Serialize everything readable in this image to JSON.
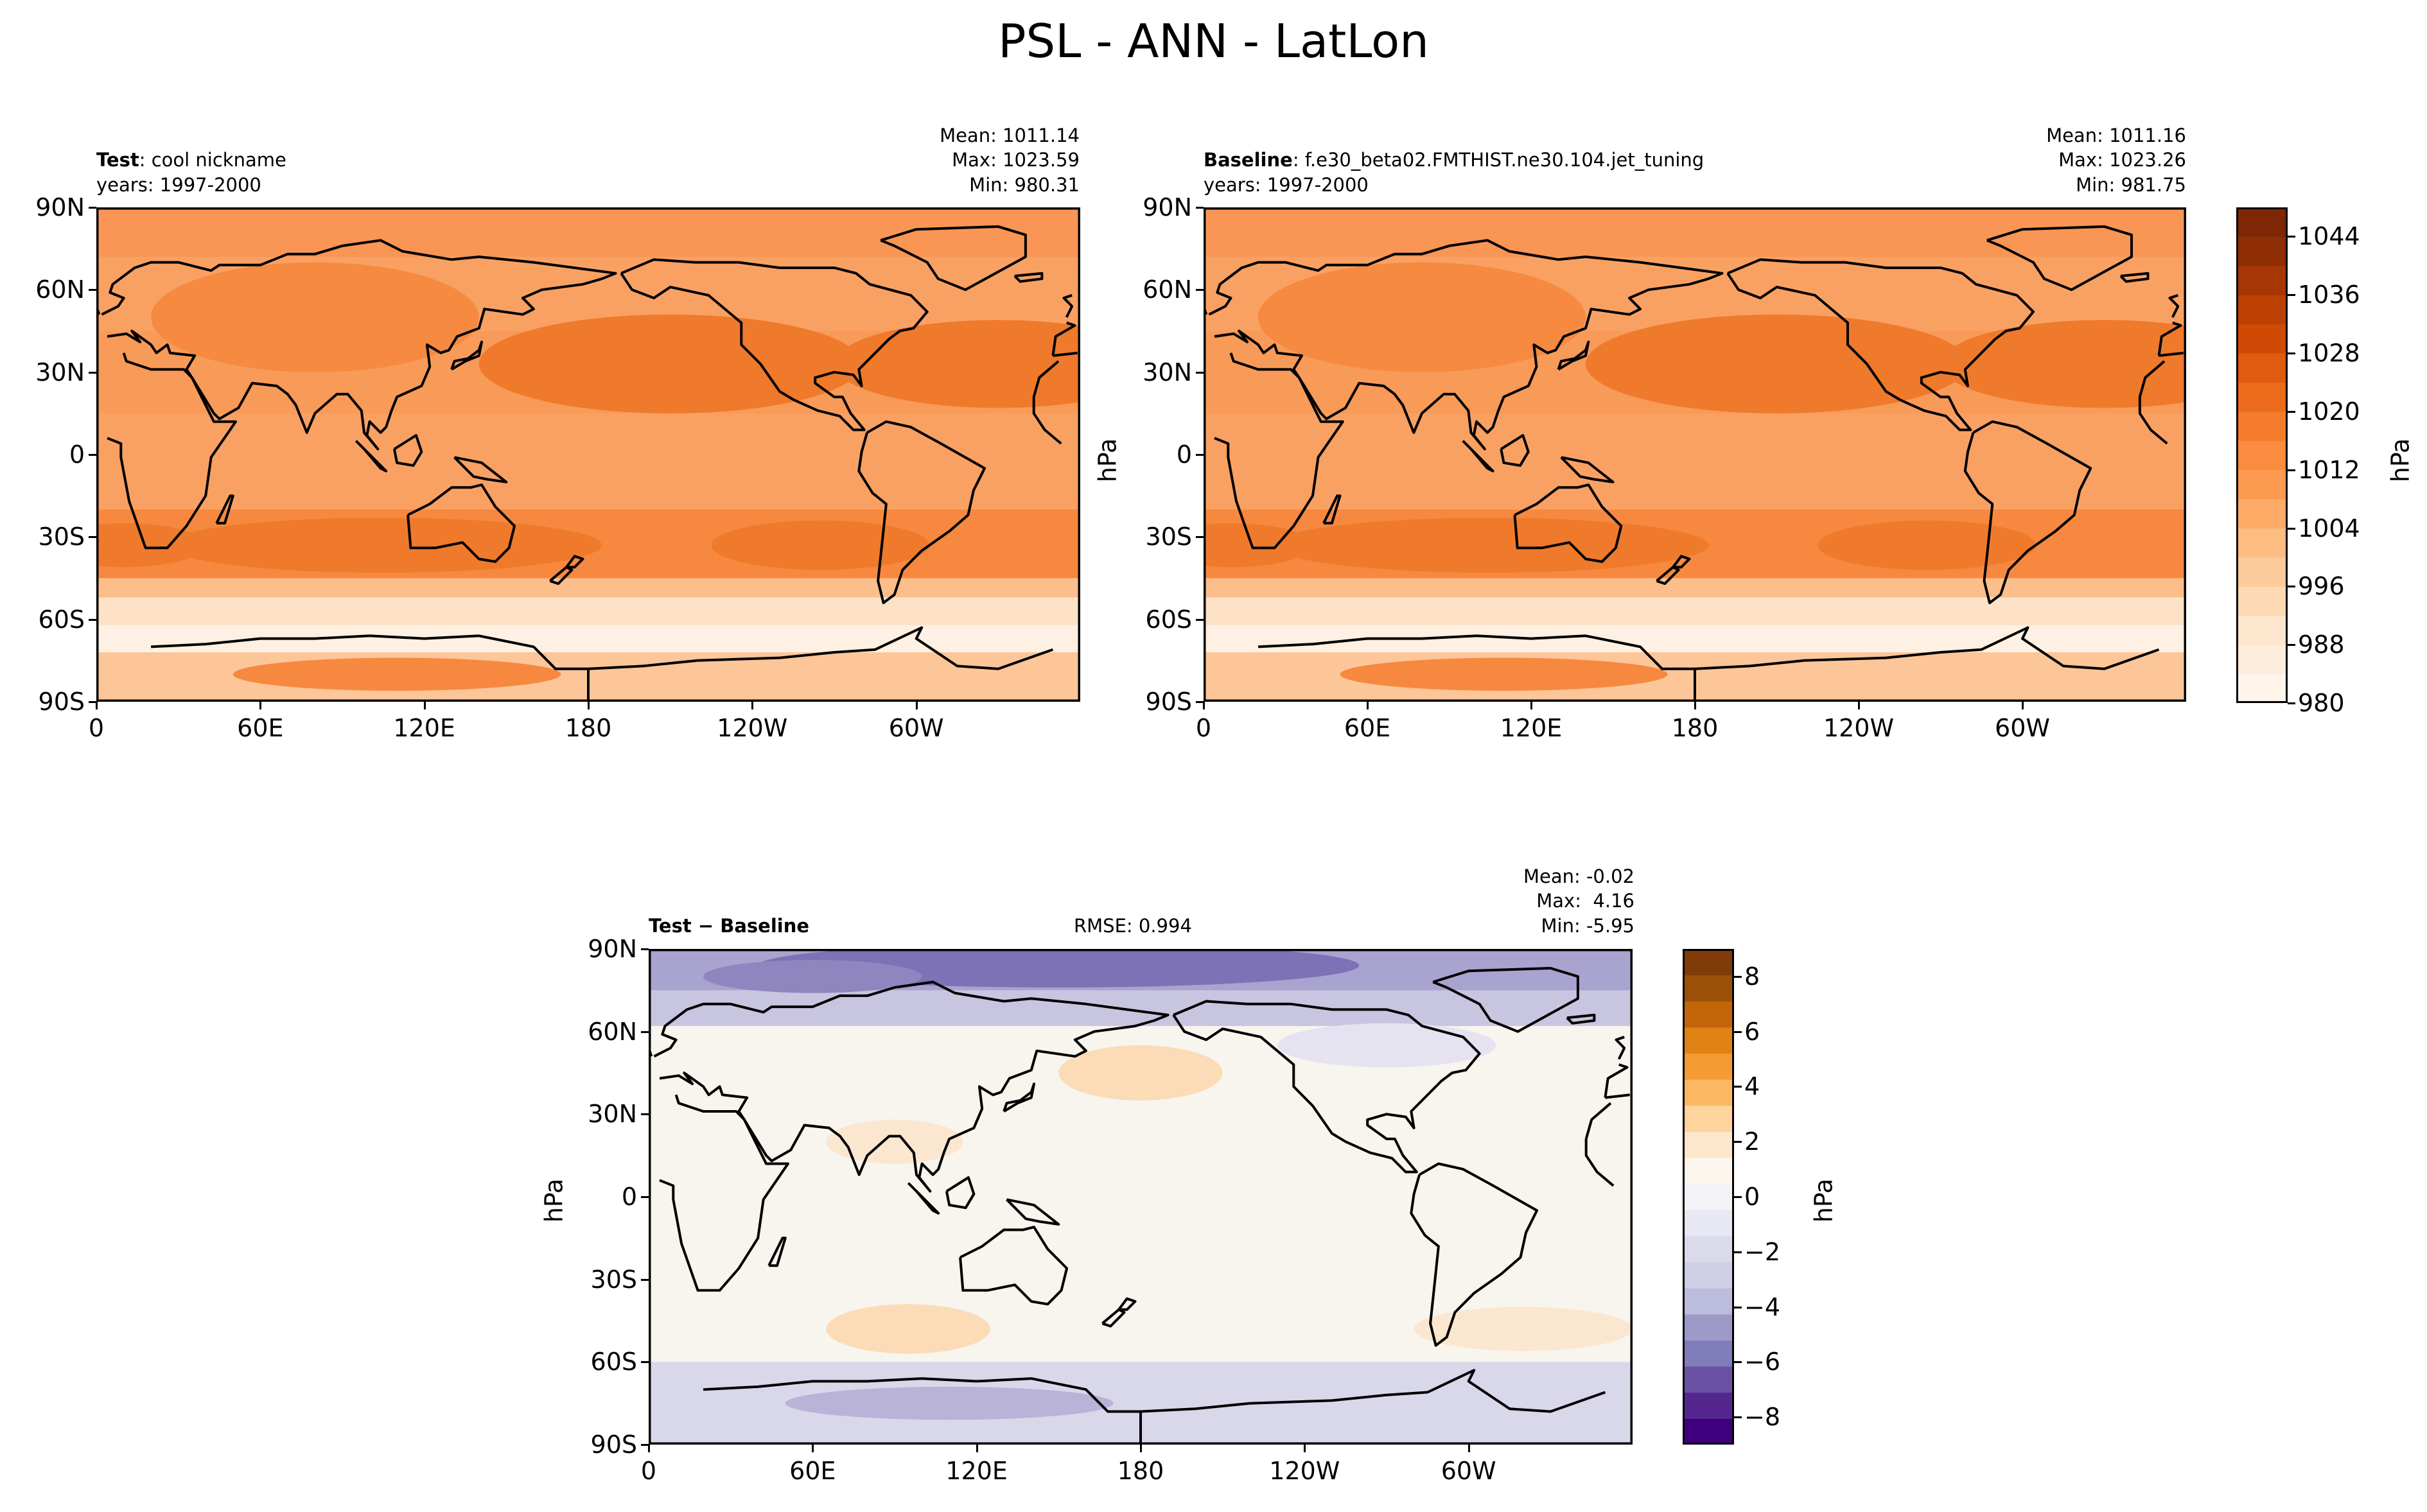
{
  "title": "PSL - ANN - LatLon",
  "panels": {
    "test": {
      "label_bold": "Test",
      "label_rest": ": cool nickname",
      "years": "years: 1997-2000",
      "mean": "Mean: 1011.14",
      "max": "Max: 1023.59",
      "min": "Min: 980.31"
    },
    "baseline": {
      "label_bold": "Baseline",
      "label_rest": ": f.e30_beta02.FMTHIST.ne30.104.jet_tuning",
      "years": "years: 1997-2000",
      "mean": "Mean: 1011.16",
      "max": "Max: 1023.26",
      "min": "Min: 981.75"
    },
    "diff": {
      "label": "Test − Baseline",
      "rmse": "RMSE: 0.994",
      "mean": "Mean: -0.02",
      "max": "Max:  4.16",
      "min": "Min: -5.95"
    }
  },
  "unit": "hPa",
  "lat_ticks": [
    "90N",
    "60N",
    "30N",
    "0",
    "30S",
    "60S",
    "90S"
  ],
  "lon_ticks": [
    "0",
    "60E",
    "120E",
    "180",
    "120W",
    "60W"
  ],
  "colorbar_psl": {
    "ticks": [
      "1044",
      "1036",
      "1028",
      "1020",
      "1012",
      "1004",
      "996",
      "988",
      "980"
    ],
    "range": [
      980,
      1048
    ]
  },
  "colorbar_diff": {
    "ticks": [
      "8",
      "6",
      "4",
      "2",
      "0",
      "−2",
      "−4",
      "−6",
      "−8"
    ],
    "range": [
      -9,
      9
    ]
  },
  "chart_data": [
    {
      "type": "heatmap",
      "title": "Test : cool nickname",
      "variable": "PSL",
      "unit": "hPa",
      "x_ticks": [
        "0",
        "60E",
        "120E",
        "180",
        "120W",
        "60W"
      ],
      "y_ticks": [
        "90N",
        "60N",
        "30N",
        "0",
        "30S",
        "60S",
        "90S"
      ],
      "stats": {
        "mean": 1011.14,
        "max": 1023.59,
        "min": 980.31
      },
      "clim": [
        980,
        1048
      ]
    },
    {
      "type": "heatmap",
      "title": "Baseline : f.e30_beta02.FMTHIST.ne30.104.jet_tuning",
      "variable": "PSL",
      "unit": "hPa",
      "x_ticks": [
        "0",
        "60E",
        "120E",
        "180",
        "120W",
        "60W"
      ],
      "y_ticks": [
        "90N",
        "60N",
        "30N",
        "0",
        "30S",
        "60S",
        "90S"
      ],
      "stats": {
        "mean": 1011.16,
        "max": 1023.26,
        "min": 981.75
      },
      "clim": [
        980,
        1048
      ]
    },
    {
      "type": "heatmap",
      "title": "Test − Baseline",
      "variable": "PSL difference",
      "unit": "hPa",
      "x_ticks": [
        "0",
        "60E",
        "120E",
        "180",
        "120W",
        "60W"
      ],
      "y_ticks": [
        "90N",
        "60N",
        "30N",
        "0",
        "30S",
        "60S",
        "90S"
      ],
      "stats": {
        "mean": -0.02,
        "max": 4.16,
        "min": -5.95,
        "rmse": 0.994
      },
      "clim": [
        -9,
        9
      ]
    }
  ]
}
